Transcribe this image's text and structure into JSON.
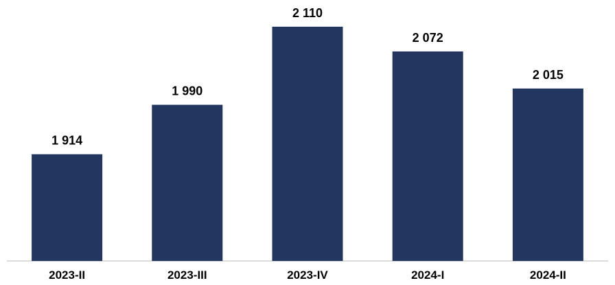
{
  "chart_data": {
    "type": "bar",
    "categories": [
      "2023-II",
      "2023-III",
      "2023-IV",
      "2024-I",
      "2024-II"
    ],
    "values": [
      1914,
      1990,
      2110,
      2072,
      2015
    ],
    "value_labels": [
      "1 914",
      "1 990",
      "2 110",
      "2 072",
      "2 015"
    ],
    "title": "",
    "xlabel": "",
    "ylabel": "",
    "ylim": [
      1750,
      2130
    ],
    "grid": false,
    "legend": "none",
    "colors": {
      "bar": "#22365f",
      "axis": "#d0d0d0"
    }
  }
}
